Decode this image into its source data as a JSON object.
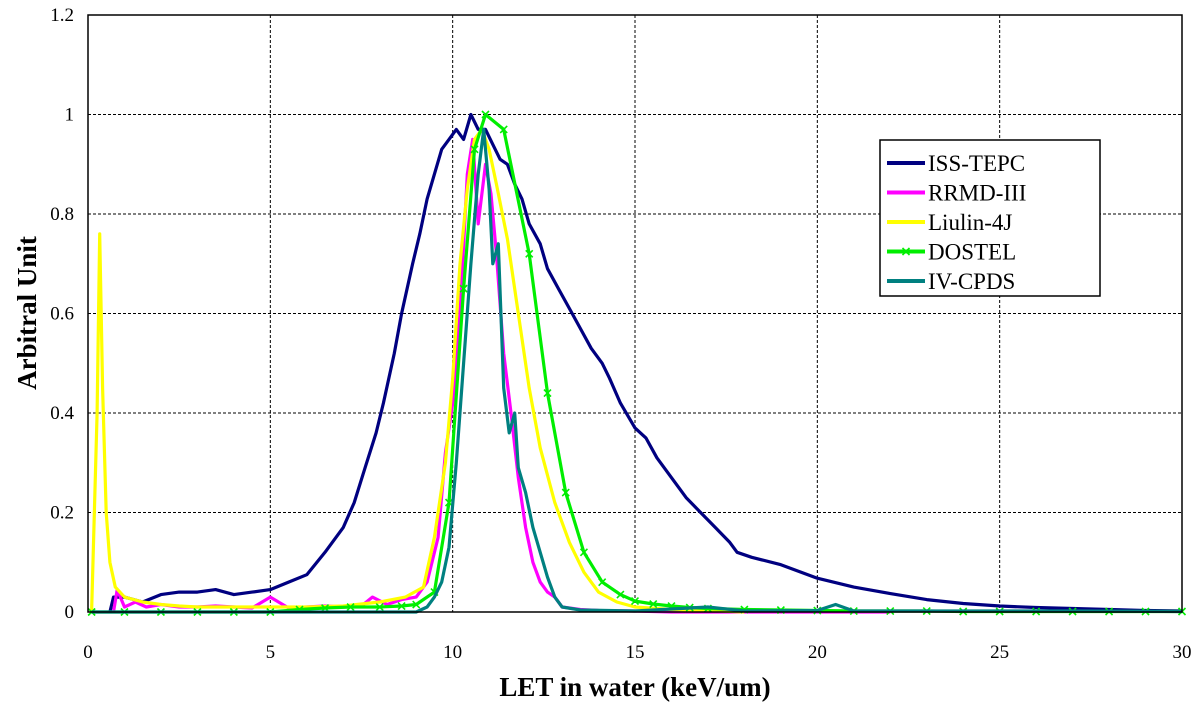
{
  "chart_data": {
    "type": "line",
    "title": "",
    "xlabel": "LET in water (keV/um)",
    "ylabel": "Arbitral Unit",
    "xlim": [
      0,
      30
    ],
    "ylim": [
      0,
      1.2
    ],
    "x_ticks": [
      "0",
      "5",
      "10",
      "15",
      "20",
      "25",
      "30"
    ],
    "y_ticks": [
      "0",
      "0.2",
      "0.4",
      "0.6",
      "0.8",
      "1",
      "1.2"
    ],
    "grid": "dashed",
    "legend_position": "top-right",
    "series": [
      {
        "name": "ISS-TEPC",
        "color": "#000080",
        "marker": "none",
        "points": [
          [
            0.6,
            0.0
          ],
          [
            0.7,
            0.03
          ],
          [
            1.0,
            0.03
          ],
          [
            1.5,
            0.02
          ],
          [
            2.0,
            0.035
          ],
          [
            2.5,
            0.04
          ],
          [
            3.0,
            0.04
          ],
          [
            3.5,
            0.045
          ],
          [
            4.0,
            0.035
          ],
          [
            4.5,
            0.04
          ],
          [
            5.0,
            0.045
          ],
          [
            5.5,
            0.06
          ],
          [
            6.0,
            0.075
          ],
          [
            6.5,
            0.12
          ],
          [
            7.0,
            0.17
          ],
          [
            7.3,
            0.22
          ],
          [
            7.6,
            0.29
          ],
          [
            7.9,
            0.36
          ],
          [
            8.1,
            0.42
          ],
          [
            8.4,
            0.52
          ],
          [
            8.6,
            0.6
          ],
          [
            8.9,
            0.7
          ],
          [
            9.1,
            0.76
          ],
          [
            9.3,
            0.83
          ],
          [
            9.5,
            0.88
          ],
          [
            9.7,
            0.93
          ],
          [
            9.9,
            0.95
          ],
          [
            10.1,
            0.97
          ],
          [
            10.3,
            0.95
          ],
          [
            10.5,
            1.0
          ],
          [
            10.7,
            0.97
          ],
          [
            10.9,
            0.97
          ],
          [
            11.1,
            0.94
          ],
          [
            11.3,
            0.91
          ],
          [
            11.5,
            0.9
          ],
          [
            11.7,
            0.86
          ],
          [
            11.9,
            0.83
          ],
          [
            12.1,
            0.78
          ],
          [
            12.4,
            0.74
          ],
          [
            12.6,
            0.69
          ],
          [
            12.9,
            0.65
          ],
          [
            13.2,
            0.61
          ],
          [
            13.5,
            0.57
          ],
          [
            13.8,
            0.53
          ],
          [
            14.1,
            0.5
          ],
          [
            14.3,
            0.47
          ],
          [
            14.6,
            0.42
          ],
          [
            15.0,
            0.37
          ],
          [
            15.3,
            0.35
          ],
          [
            15.6,
            0.31
          ],
          [
            16.0,
            0.27
          ],
          [
            16.4,
            0.23
          ],
          [
            16.8,
            0.2
          ],
          [
            17.2,
            0.17
          ],
          [
            17.6,
            0.14
          ],
          [
            17.8,
            0.12
          ],
          [
            18.2,
            0.11
          ],
          [
            19.0,
            0.095
          ],
          [
            20.0,
            0.068
          ],
          [
            21.0,
            0.05
          ],
          [
            22.0,
            0.037
          ],
          [
            23.0,
            0.025
          ],
          [
            24.0,
            0.017
          ],
          [
            25.0,
            0.012
          ],
          [
            26.0,
            0.009
          ],
          [
            27.0,
            0.007
          ],
          [
            28.0,
            0.005
          ],
          [
            29.0,
            0.003
          ],
          [
            30.0,
            0.002
          ]
        ]
      },
      {
        "name": "RRMD-III",
        "color": "#ff00ff",
        "marker": "none",
        "points": [
          [
            0.7,
            0.0
          ],
          [
            0.8,
            0.045
          ],
          [
            1.0,
            0.01
          ],
          [
            1.3,
            0.02
          ],
          [
            1.6,
            0.01
          ],
          [
            2.0,
            0.015
          ],
          [
            2.5,
            0.01
          ],
          [
            3.0,
            0.01
          ],
          [
            3.5,
            0.012
          ],
          [
            4.0,
            0.01
          ],
          [
            4.5,
            0.008
          ],
          [
            5.0,
            0.03
          ],
          [
            5.5,
            0.008
          ],
          [
            6.0,
            0.01
          ],
          [
            6.5,
            0.012
          ],
          [
            7.0,
            0.01
          ],
          [
            7.5,
            0.012
          ],
          [
            7.8,
            0.03
          ],
          [
            8.2,
            0.015
          ],
          [
            8.6,
            0.025
          ],
          [
            9.0,
            0.03
          ],
          [
            9.3,
            0.06
          ],
          [
            9.6,
            0.15
          ],
          [
            9.8,
            0.32
          ],
          [
            10.0,
            0.42
          ],
          [
            10.2,
            0.6
          ],
          [
            10.4,
            0.88
          ],
          [
            10.55,
            0.95
          ],
          [
            10.7,
            0.78
          ],
          [
            10.9,
            0.9
          ],
          [
            11.05,
            0.84
          ],
          [
            11.2,
            0.72
          ],
          [
            11.4,
            0.52
          ],
          [
            11.6,
            0.4
          ],
          [
            11.8,
            0.27
          ],
          [
            12.0,
            0.17
          ],
          [
            12.2,
            0.1
          ],
          [
            12.4,
            0.06
          ],
          [
            12.6,
            0.04
          ],
          [
            12.8,
            0.03
          ],
          [
            13.0,
            0.01
          ],
          [
            13.5,
            0.005
          ],
          [
            14.0,
            0.003
          ],
          [
            15.0,
            0.002
          ],
          [
            16.0,
            0.0
          ],
          [
            18.0,
            0.0
          ],
          [
            20.0,
            0.0
          ],
          [
            22.0,
            0.0
          ]
        ]
      },
      {
        "name": "Liulin-4J",
        "color": "#ffff00",
        "marker": "none",
        "points": [
          [
            0.1,
            0.0
          ],
          [
            0.25,
            0.4
          ],
          [
            0.32,
            0.76
          ],
          [
            0.4,
            0.45
          ],
          [
            0.5,
            0.2
          ],
          [
            0.6,
            0.1
          ],
          [
            0.75,
            0.05
          ],
          [
            1.0,
            0.03
          ],
          [
            1.5,
            0.02
          ],
          [
            2.0,
            0.015
          ],
          [
            2.5,
            0.012
          ],
          [
            3.0,
            0.01
          ],
          [
            4.0,
            0.01
          ],
          [
            5.0,
            0.01
          ],
          [
            6.0,
            0.01
          ],
          [
            7.0,
            0.012
          ],
          [
            8.0,
            0.02
          ],
          [
            8.7,
            0.03
          ],
          [
            9.2,
            0.05
          ],
          [
            9.5,
            0.15
          ],
          [
            9.8,
            0.3
          ],
          [
            10.0,
            0.47
          ],
          [
            10.2,
            0.7
          ],
          [
            10.4,
            0.85
          ],
          [
            10.6,
            0.95
          ],
          [
            10.8,
            0.97
          ],
          [
            11.0,
            0.93
          ],
          [
            11.2,
            0.86
          ],
          [
            11.5,
            0.75
          ],
          [
            11.8,
            0.6
          ],
          [
            12.1,
            0.45
          ],
          [
            12.4,
            0.33
          ],
          [
            12.8,
            0.22
          ],
          [
            13.2,
            0.14
          ],
          [
            13.6,
            0.08
          ],
          [
            14.0,
            0.04
          ],
          [
            14.5,
            0.02
          ],
          [
            15.0,
            0.01
          ],
          [
            16.0,
            0.005
          ],
          [
            17.0,
            0.003
          ],
          [
            18.0,
            0.0
          ]
        ]
      },
      {
        "name": "DOSTEL",
        "color": "#00ee00",
        "marker": "x",
        "points": [
          [
            0.1,
            0.0
          ],
          [
            1.0,
            0.0
          ],
          [
            2.0,
            0.0
          ],
          [
            3.0,
            0.0
          ],
          [
            4.0,
            0.0
          ],
          [
            5.0,
            0.0
          ],
          [
            5.8,
            0.005
          ],
          [
            6.5,
            0.008
          ],
          [
            7.2,
            0.01
          ],
          [
            8.0,
            0.01
          ],
          [
            8.6,
            0.012
          ],
          [
            9.0,
            0.015
          ],
          [
            9.5,
            0.04
          ],
          [
            9.9,
            0.22
          ],
          [
            10.3,
            0.65
          ],
          [
            10.6,
            0.93
          ],
          [
            10.9,
            1.0
          ],
          [
            11.4,
            0.97
          ],
          [
            12.1,
            0.72
          ],
          [
            12.6,
            0.44
          ],
          [
            13.1,
            0.24
          ],
          [
            13.6,
            0.12
          ],
          [
            14.1,
            0.06
          ],
          [
            14.6,
            0.035
          ],
          [
            15.0,
            0.022
          ],
          [
            15.5,
            0.016
          ],
          [
            16.0,
            0.012
          ],
          [
            16.5,
            0.009
          ],
          [
            17.0,
            0.007
          ],
          [
            18.0,
            0.005
          ],
          [
            19.0,
            0.004
          ],
          [
            20.0,
            0.003
          ],
          [
            21.0,
            0.002
          ],
          [
            22.0,
            0.002
          ],
          [
            23.0,
            0.002
          ],
          [
            24.0,
            0.001
          ],
          [
            25.0,
            0.001
          ],
          [
            26.0,
            0.001
          ],
          [
            27.0,
            0.001
          ],
          [
            28.0,
            0.001
          ],
          [
            29.0,
            0.001
          ],
          [
            30.0,
            0.001
          ]
        ]
      },
      {
        "name": "IV-CPDS",
        "color": "#008080",
        "marker": "none",
        "points": [
          [
            0.1,
            0.0
          ],
          [
            2.0,
            0.0
          ],
          [
            4.0,
            0.0
          ],
          [
            6.0,
            0.0
          ],
          [
            8.0,
            0.0
          ],
          [
            9.0,
            0.0
          ],
          [
            9.3,
            0.01
          ],
          [
            9.5,
            0.03
          ],
          [
            9.7,
            0.06
          ],
          [
            9.9,
            0.13
          ],
          [
            10.1,
            0.3
          ],
          [
            10.3,
            0.5
          ],
          [
            10.5,
            0.7
          ],
          [
            10.7,
            0.88
          ],
          [
            10.85,
            0.97
          ],
          [
            11.0,
            0.85
          ],
          [
            11.1,
            0.7
          ],
          [
            11.25,
            0.74
          ],
          [
            11.4,
            0.45
          ],
          [
            11.55,
            0.36
          ],
          [
            11.7,
            0.4
          ],
          [
            11.8,
            0.29
          ],
          [
            12.0,
            0.24
          ],
          [
            12.2,
            0.17
          ],
          [
            12.4,
            0.12
          ],
          [
            12.6,
            0.07
          ],
          [
            12.8,
            0.03
          ],
          [
            13.0,
            0.01
          ],
          [
            13.5,
            0.004
          ],
          [
            15.0,
            0.002
          ],
          [
            17.0,
            0.01
          ],
          [
            18.0,
            0.002
          ],
          [
            20.0,
            0.003
          ],
          [
            20.5,
            0.015
          ],
          [
            21.0,
            0.002
          ],
          [
            24.0,
            0.002
          ],
          [
            27.0,
            0.002
          ],
          [
            30.0,
            0.001
          ]
        ]
      }
    ]
  }
}
